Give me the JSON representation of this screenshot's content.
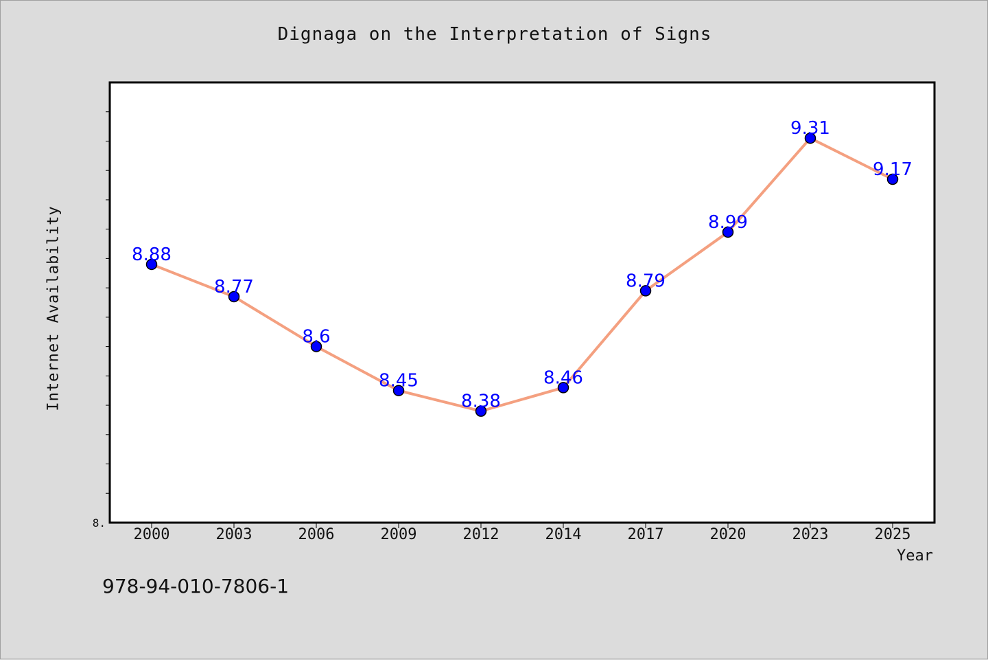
{
  "chart_data": {
    "type": "line",
    "title": "Dignaga on the Interpretation of Signs",
    "xlabel": "Year",
    "ylabel": "Internet Availability",
    "categories": [
      "2000",
      "2003",
      "2006",
      "2009",
      "2012",
      "2014",
      "2017",
      "2020",
      "2023",
      "2025"
    ],
    "series": [
      {
        "values": [
          8.88,
          8.77,
          8.6,
          8.45,
          8.38,
          8.46,
          8.79,
          8.99,
          9.31,
          9.17
        ],
        "line_color": "#f4a080",
        "marker_color": "#0000ff",
        "label_color": "#0000ff"
      }
    ],
    "ylim": [
      8.0,
      9.5
    ],
    "y_tick_label": "8.",
    "grid": false,
    "data_labels": true
  },
  "footer": {
    "isbn": "978-94-010-7806-1"
  }
}
